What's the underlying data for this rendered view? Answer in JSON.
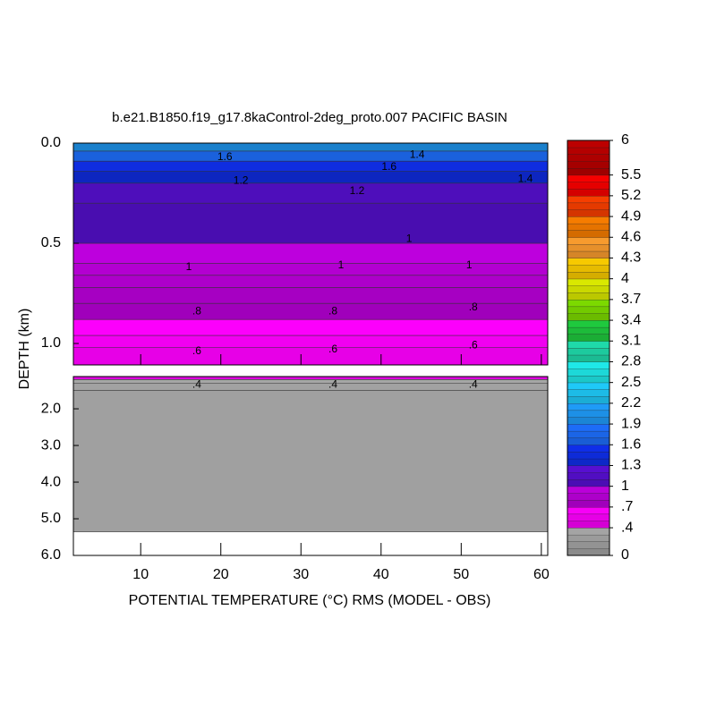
{
  "chart_data": {
    "type": "contour",
    "title": "b.e21.B1850.f19_g17.8kaControl-2deg_proto.007 PACIFIC BASIN",
    "xlabel": "POTENTIAL TEMPERATURE (°C) RMS (MODEL - OBS)",
    "ylabel": "DEPTH (km)",
    "xlim": [
      1.6,
      60.8
    ],
    "xticks": [
      10,
      20,
      30,
      40,
      50,
      60
    ],
    "panels": [
      {
        "ylim": [
          0,
          1.107
        ],
        "yticks": [
          {
            "value": 0,
            "label": "0.0"
          },
          {
            "value": 0.5,
            "label": "0.5"
          },
          {
            "value": 1,
            "label": "1.0"
          }
        ],
        "depth_edges": [
          0,
          0.04,
          0.09,
          0.14,
          0.2,
          0.3,
          0.5,
          0.6,
          0.66,
          0.72,
          0.8,
          0.88,
          0.96,
          1.02,
          1.107
        ],
        "values": [
          1.9,
          1.7,
          1.5,
          1.3,
          1.1,
          1.02,
          0.98,
          0.9,
          0.85,
          0.8,
          0.75,
          0.68,
          0.62,
          0.56
        ]
      },
      {
        "ylim": [
          1.12,
          6
        ],
        "yticks": [
          {
            "value": 2,
            "label": "2.0"
          },
          {
            "value": 3,
            "label": "3.0"
          },
          {
            "value": 4,
            "label": "4.0"
          },
          {
            "value": 5,
            "label": "5.0"
          },
          {
            "value": 6,
            "label": "6.0"
          }
        ],
        "depth_edges": [
          1.12,
          1.2,
          1.3,
          1.5,
          5.35,
          6
        ],
        "values": [
          0.5,
          0.38,
          0.33,
          0.3,
          null
        ]
      }
    ],
    "contour_labels": [
      {
        "label": "1.6",
        "value": 1.6,
        "x": 20.5,
        "depth": 0.07
      },
      {
        "label": "1.6",
        "value": 1.6,
        "x": 41,
        "depth": 0.12
      },
      {
        "label": "1.4",
        "value": 1.4,
        "x": 44.5,
        "depth": 0.06
      },
      {
        "label": "1.4",
        "value": 1.4,
        "x": 58,
        "depth": 0.18
      },
      {
        "label": "1.2",
        "value": 1.2,
        "x": 22.5,
        "depth": 0.19
      },
      {
        "label": "1.2",
        "value": 1.2,
        "x": 37,
        "depth": 0.24
      },
      {
        "label": "1",
        "value": 1,
        "x": 43.5,
        "depth": 0.48
      },
      {
        "label": "1",
        "value": 1,
        "x": 16,
        "depth": 0.62
      },
      {
        "label": "1",
        "value": 1,
        "x": 35,
        "depth": 0.61
      },
      {
        "label": "1",
        "value": 1,
        "x": 51,
        "depth": 0.61
      },
      {
        "label": ".8",
        "value": 0.8,
        "x": 17,
        "depth": 0.84
      },
      {
        "label": ".8",
        "value": 0.8,
        "x": 34,
        "depth": 0.84
      },
      {
        "label": ".8",
        "value": 0.8,
        "x": 51.5,
        "depth": 0.82
      },
      {
        "label": ".6",
        "value": 0.6,
        "x": 17,
        "depth": 1.04
      },
      {
        "label": ".6",
        "value": 0.6,
        "x": 34,
        "depth": 1.03
      },
      {
        "label": ".6",
        "value": 0.6,
        "x": 51.5,
        "depth": 1.01
      },
      {
        "label": ".4",
        "value": 0.4,
        "x": 17,
        "depth": 1.35
      },
      {
        "label": ".4",
        "value": 0.4,
        "x": 34,
        "depth": 1.35
      },
      {
        "label": ".4",
        "value": 0.4,
        "x": 51.5,
        "depth": 1.35
      }
    ],
    "colorbar": {
      "lim": [
        0,
        6
      ],
      "ticks": [
        0,
        {
          "value": 0.4,
          "label": ".4"
        },
        {
          "value": 0.7,
          "label": ".7"
        },
        1,
        1.3,
        1.6,
        1.9,
        2.2,
        2.5,
        2.8,
        3.1,
        3.4,
        3.7,
        4,
        4.3,
        4.6,
        4.9,
        5.2,
        5.5,
        6
      ],
      "colors": [
        "#a8a8a8",
        "#ff00ff",
        "#c000e0",
        "#5a10d8",
        "#1030f0",
        "#1e70ff",
        "#20a0ff",
        "#20d0ff",
        "#20f0f0",
        "#20e0b0",
        "#20d040",
        "#80e000",
        "#e0f000",
        "#ffd000",
        "#ffa030",
        "#ff8000",
        "#ff4000",
        "#ff0000",
        "#c00000"
      ]
    }
  }
}
